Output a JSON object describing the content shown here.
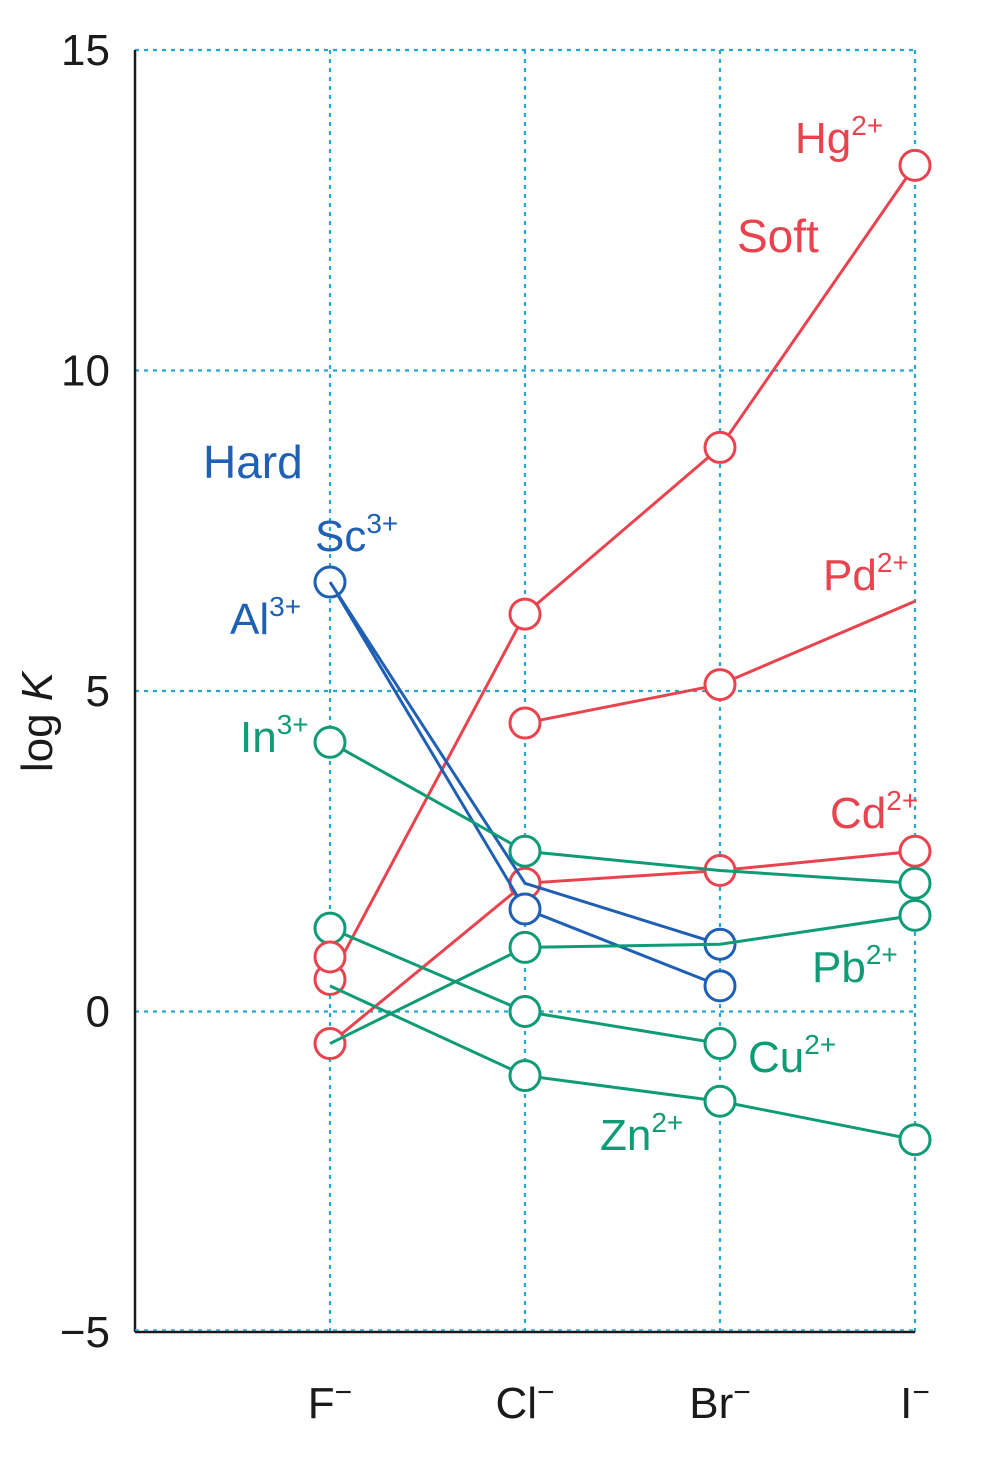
{
  "chart_data": {
    "type": "line",
    "title": "",
    "xlabel": "",
    "ylabel": "log K",
    "ylabel_parts": {
      "text": "log ",
      "italic": "K"
    },
    "ylim": [
      -5,
      15
    ],
    "yticks": [
      15,
      10,
      5,
      0,
      -5
    ],
    "ytick_labels": [
      "15",
      "10",
      "5",
      "0",
      "−5"
    ],
    "categories": [
      "F⁻",
      "Cl⁻",
      "Br⁻",
      "I⁻"
    ],
    "category_labels": [
      {
        "base": "F",
        "sup": "−"
      },
      {
        "base": "Cl",
        "sup": "−"
      },
      {
        "base": "Br",
        "sup": "−"
      },
      {
        "base": "I",
        "sup": "−"
      }
    ],
    "grid": true,
    "colors": {
      "hard": "#1f5fb4",
      "soft": "#e8434f",
      "border": "#0f9b76",
      "grid": "#24a9d6",
      "axis": "#1a1a1a"
    },
    "annotations": [
      {
        "id": "hard",
        "text": "Hard",
        "group": "hard"
      },
      {
        "id": "soft",
        "text": "Soft",
        "group": "soft"
      }
    ],
    "series": [
      {
        "name": "Hg²⁺",
        "base": "Hg",
        "sup": "2+",
        "group": "soft",
        "values": [
          0.5,
          6.2,
          8.8,
          13.2
        ],
        "markers": [
          true,
          true,
          true,
          true
        ]
      },
      {
        "name": "Pd²⁺",
        "base": "Pd",
        "sup": "2+",
        "group": "soft",
        "values": [
          null,
          4.5,
          5.1,
          6.4
        ],
        "markers": [
          false,
          true,
          true,
          false
        ]
      },
      {
        "name": "Cd²⁺",
        "base": "Cd",
        "sup": "2+",
        "group": "soft",
        "values": [
          -0.5,
          2.0,
          2.2,
          2.5
        ],
        "markers": [
          true,
          true,
          true,
          true
        ]
      },
      {
        "name": "Sc³⁺",
        "base": "Sc",
        "sup": "3+",
        "group": "hard",
        "values": [
          6.7,
          1.6,
          0.4,
          null
        ],
        "markers": [
          true,
          true,
          true,
          false
        ]
      },
      {
        "name": "Al³⁺",
        "base": "Al",
        "sup": "3+",
        "group": "hard",
        "values": [
          6.7,
          2.0,
          1.05,
          null
        ],
        "markers": [
          false,
          false,
          true,
          false
        ]
      },
      {
        "name": "In³⁺",
        "base": "In",
        "sup": "3+",
        "group": "border",
        "values": [
          4.2,
          2.5,
          2.2,
          2.0
        ],
        "markers": [
          true,
          true,
          false,
          true
        ]
      },
      {
        "name": "Pb²⁺",
        "base": "Pb",
        "sup": "2+",
        "group": "border",
        "values": [
          -0.5,
          1.0,
          1.05,
          1.5
        ],
        "markers": [
          false,
          true,
          false,
          true
        ]
      },
      {
        "name": "Cu²⁺",
        "base": "Cu",
        "sup": "2+",
        "group": "border",
        "values": [
          1.3,
          0.0,
          -0.5,
          null
        ],
        "markers": [
          true,
          true,
          true,
          false
        ]
      },
      {
        "name": "Zn²⁺",
        "base": "Zn",
        "sup": "2+",
        "group": "border",
        "values": [
          0.4,
          -1.0,
          -1.4,
          -2.0
        ],
        "markers": [
          false,
          true,
          true,
          true
        ]
      },
      {
        "name": "Hg²⁺ (F⁻)",
        "base": "",
        "sup": "",
        "group": "soft",
        "values": [
          0.85,
          null,
          null,
          null
        ],
        "markers": [
          true,
          false,
          false,
          false
        ]
      }
    ]
  }
}
